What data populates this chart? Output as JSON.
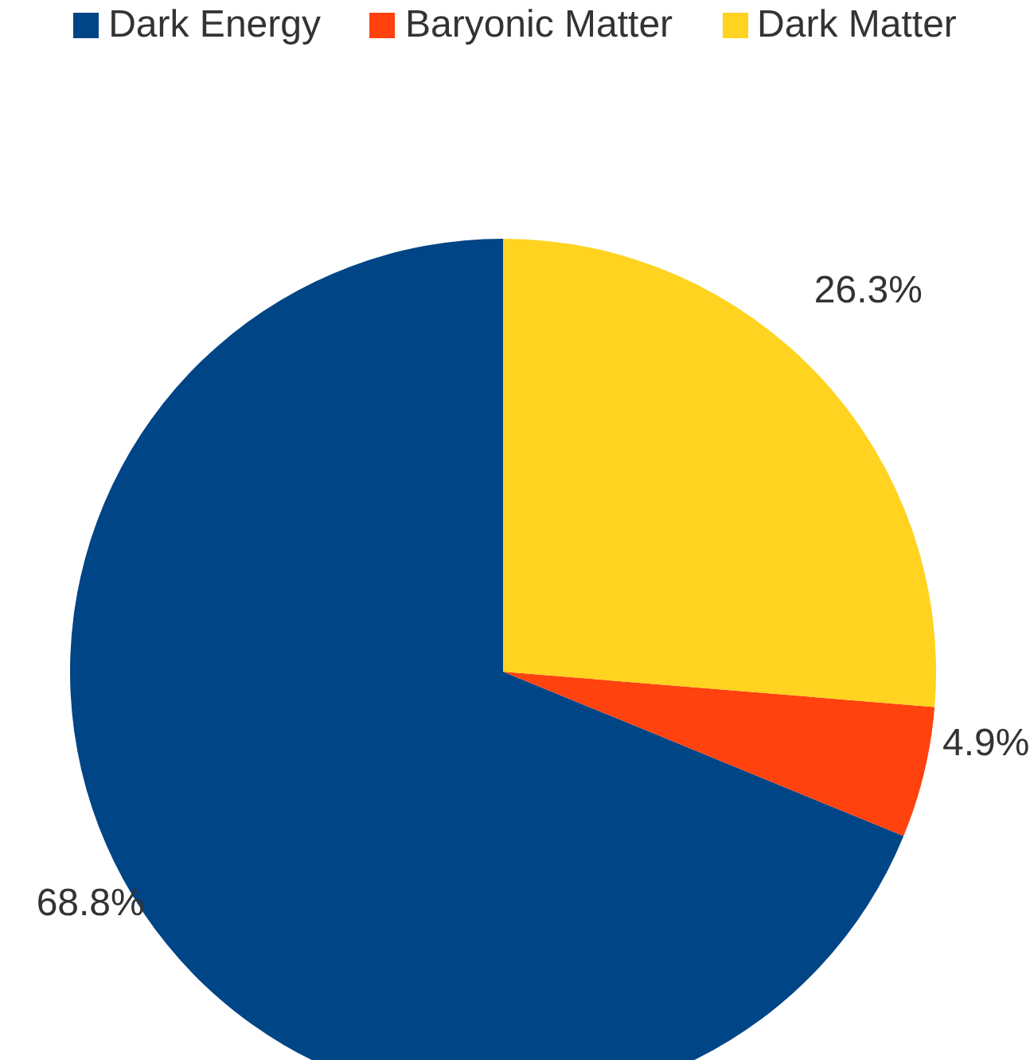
{
  "chart_data": {
    "type": "pie",
    "categories": [
      "Dark Energy",
      "Baryonic Matter",
      "Dark Matter"
    ],
    "values": [
      68.8,
      4.9,
      26.3
    ],
    "colors": [
      "#004586",
      "#ff420e",
      "#ffd320"
    ],
    "value_labels": [
      "68.8%",
      "4.9%",
      "26.3%"
    ],
    "legend": "top"
  }
}
